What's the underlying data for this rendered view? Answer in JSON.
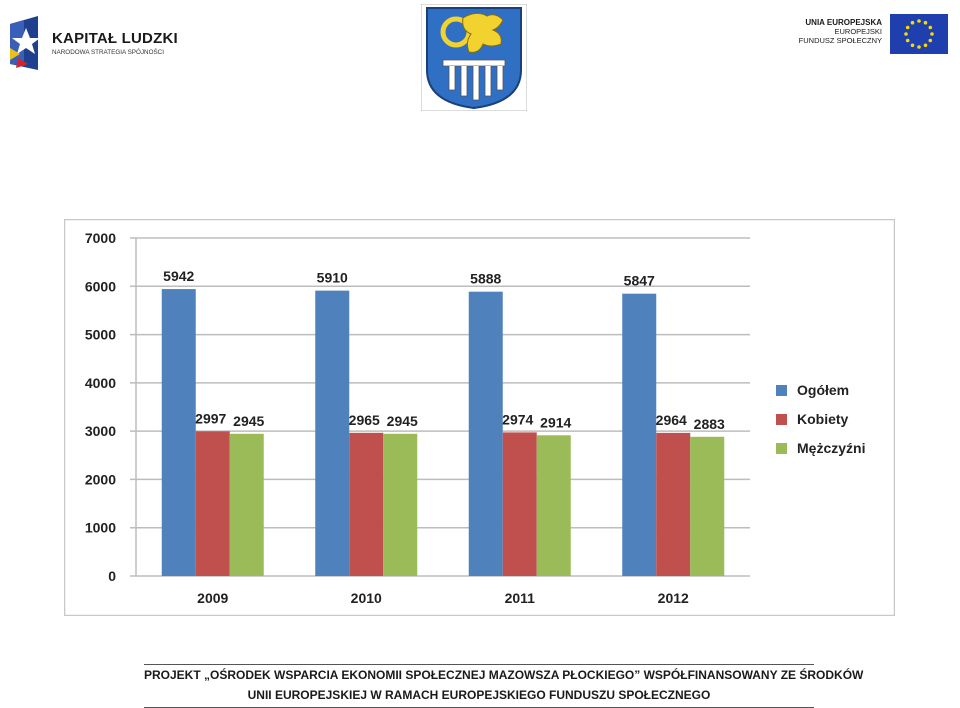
{
  "header": {
    "kl_title": "KAPITAŁ LUDZKI",
    "kl_subtitle": "NARODOWA STRATEGIA SPÓJNOŚCI",
    "eu_line1": "UNIA EUROPEJSKA",
    "eu_line2": "EUROPEJSKI",
    "eu_line3": "FUNDUSZ SPOŁECZNY"
  },
  "chart_data": {
    "type": "bar",
    "categories": [
      "2009",
      "2010",
      "2011",
      "2012"
    ],
    "series": [
      {
        "name": "Ogółem",
        "values": [
          5942,
          5910,
          5888,
          5847
        ],
        "labels": [
          "5942",
          "5910",
          "5888",
          "5847"
        ],
        "color": "#4f81bd"
      },
      {
        "name": "Kobiety",
        "values": [
          2997,
          2965,
          2974,
          2964
        ],
        "labels": [
          "2997",
          "2965",
          "2974",
          "2964"
        ],
        "color": "#c0504d"
      },
      {
        "name": "Mężczyźni",
        "values": [
          2945,
          2945,
          2914,
          2883
        ],
        "labels": [
          "2945",
          "2945",
          "2914",
          "2883"
        ],
        "color": "#9bbb59"
      }
    ],
    "yticks": [
      "0",
      "1000",
      "2000",
      "3000",
      "4000",
      "5000",
      "6000",
      "7000"
    ],
    "ylim": [
      0,
      7000
    ],
    "grid": true,
    "legend": "right",
    "title": "",
    "xlabel": "",
    "ylabel": ""
  },
  "footer": {
    "line1": "PROJEKT „OŚRODEK WSPARCIA EKONOMII SPOŁECZNEJ MAZOWSZA PŁOCKIEGO” WSPÓŁFINANSOWANY ZE ŚRODKÓW",
    "line2": "UNII EUROPEJSKIEJ W RAMACH EUROPEJSKIEGO FUNDUSZU SPOŁECZNEGO"
  }
}
